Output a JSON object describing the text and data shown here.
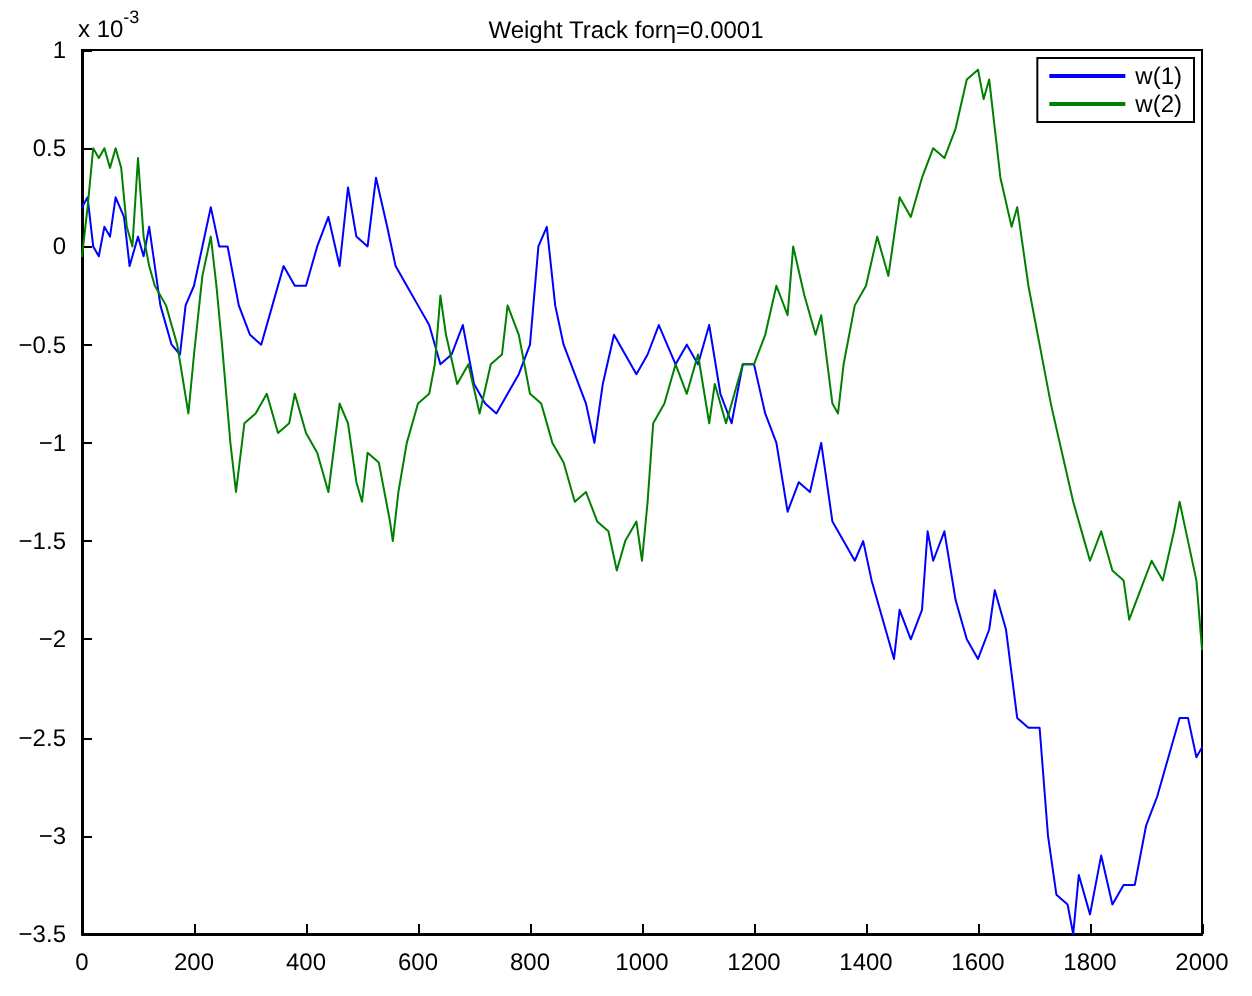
{
  "chart_data": {
    "type": "line",
    "title": "Weight Track forη=0.0001",
    "annotations": [
      "x 10$^{-3}$"
    ],
    "xlim": [
      0,
      2000
    ],
    "xticks": [
      0,
      200,
      400,
      600,
      800,
      1000,
      1200,
      1400,
      1600,
      1800,
      2000
    ],
    "ylim": [
      -3.5,
      1
    ],
    "yticks": [
      -3.5,
      -3,
      -2.5,
      -2,
      -1.5,
      -1,
      -0.5,
      0,
      0.5,
      1
    ],
    "grid": false,
    "legend": "top right",
    "marker": "none",
    "line_style": "solid",
    "series": [
      {
        "name": "w(1)",
        "color": "#0000ff",
        "x": [
          0,
          10,
          20,
          30,
          40,
          50,
          60,
          75,
          85,
          100,
          110,
          120,
          130,
          140,
          160,
          175,
          185,
          200,
          215,
          230,
          245,
          260,
          280,
          300,
          320,
          340,
          360,
          380,
          400,
          420,
          440,
          460,
          475,
          490,
          510,
          525,
          545,
          560,
          580,
          600,
          620,
          640,
          660,
          680,
          700,
          720,
          740,
          760,
          780,
          800,
          815,
          830,
          845,
          860,
          880,
          900,
          915,
          930,
          950,
          970,
          990,
          1010,
          1030,
          1060,
          1080,
          1100,
          1120,
          1140,
          1160,
          1180,
          1200,
          1220,
          1240,
          1260,
          1280,
          1300,
          1320,
          1340,
          1360,
          1380,
          1395,
          1410,
          1430,
          1450,
          1460,
          1480,
          1500,
          1510,
          1520,
          1540,
          1560,
          1580,
          1600,
          1620,
          1630,
          1650,
          1670,
          1690,
          1710,
          1725,
          1740,
          1760,
          1770,
          1780,
          1800,
          1820,
          1840,
          1860,
          1880,
          1900,
          1920,
          1940,
          1960,
          1975,
          1990,
          2000
        ],
        "values": [
          0.2,
          0.25,
          0.0,
          -0.05,
          0.1,
          0.05,
          0.25,
          0.15,
          -0.1,
          0.05,
          -0.05,
          0.1,
          -0.1,
          -0.3,
          -0.5,
          -0.55,
          -0.3,
          -0.2,
          0.0,
          0.2,
          0.0,
          0.0,
          -0.3,
          -0.45,
          -0.5,
          -0.3,
          -0.1,
          -0.2,
          -0.2,
          0.0,
          0.15,
          -0.1,
          0.3,
          0.05,
          0.0,
          0.35,
          0.1,
          -0.1,
          -0.2,
          -0.3,
          -0.4,
          -0.6,
          -0.55,
          -0.4,
          -0.7,
          -0.8,
          -0.85,
          -0.75,
          -0.65,
          -0.5,
          0.0,
          0.1,
          -0.3,
          -0.5,
          -0.65,
          -0.8,
          -1.0,
          -0.7,
          -0.45,
          -0.55,
          -0.65,
          -0.55,
          -0.4,
          -0.6,
          -0.5,
          -0.6,
          -0.4,
          -0.75,
          -0.9,
          -0.6,
          -0.6,
          -0.85,
          -1.0,
          -1.35,
          -1.2,
          -1.25,
          -1.0,
          -1.4,
          -1.5,
          -1.6,
          -1.5,
          -1.7,
          -1.9,
          -2.1,
          -1.85,
          -2.0,
          -1.85,
          -1.45,
          -1.6,
          -1.45,
          -1.8,
          -2.0,
          -2.1,
          -1.95,
          -1.75,
          -1.95,
          -2.4,
          -2.45,
          -2.45,
          -3.0,
          -3.3,
          -3.35,
          -3.5,
          -3.2,
          -3.4,
          -3.1,
          -3.35,
          -3.25,
          -3.25,
          -2.95,
          -2.8,
          -2.6,
          -2.4,
          -2.4,
          -2.6,
          -2.55
        ]
      },
      {
        "name": "w(2)",
        "color": "#008000",
        "x": [
          0,
          10,
          20,
          30,
          40,
          50,
          60,
          70,
          80,
          90,
          100,
          110,
          120,
          130,
          150,
          170,
          190,
          200,
          215,
          230,
          240,
          250,
          265,
          275,
          290,
          310,
          330,
          350,
          370,
          380,
          400,
          420,
          440,
          460,
          475,
          490,
          500,
          510,
          530,
          550,
          555,
          565,
          580,
          600,
          620,
          630,
          640,
          650,
          670,
          690,
          710,
          730,
          750,
          760,
          780,
          800,
          820,
          840,
          860,
          880,
          900,
          920,
          940,
          955,
          970,
          990,
          1000,
          1010,
          1020,
          1040,
          1060,
          1080,
          1100,
          1120,
          1130,
          1150,
          1180,
          1200,
          1220,
          1240,
          1260,
          1270,
          1290,
          1310,
          1320,
          1340,
          1350,
          1360,
          1380,
          1400,
          1420,
          1440,
          1460,
          1480,
          1500,
          1520,
          1540,
          1560,
          1580,
          1600,
          1610,
          1620,
          1630,
          1640,
          1660,
          1670,
          1690,
          1710,
          1730,
          1750,
          1770,
          1790,
          1800,
          1820,
          1840,
          1860,
          1870,
          1890,
          1910,
          1930,
          1950,
          1960,
          1975,
          1990,
          2000
        ],
        "values": [
          -0.05,
          0.2,
          0.5,
          0.45,
          0.5,
          0.4,
          0.5,
          0.4,
          0.1,
          0.0,
          0.45,
          0.05,
          -0.1,
          -0.2,
          -0.3,
          -0.5,
          -0.85,
          -0.55,
          -0.15,
          0.05,
          -0.2,
          -0.5,
          -1.0,
          -1.25,
          -0.9,
          -0.85,
          -0.75,
          -0.95,
          -0.9,
          -0.75,
          -0.95,
          -1.05,
          -1.25,
          -0.8,
          -0.9,
          -1.2,
          -1.3,
          -1.05,
          -1.1,
          -1.4,
          -1.5,
          -1.25,
          -1.0,
          -0.8,
          -0.75,
          -0.6,
          -0.25,
          -0.45,
          -0.7,
          -0.6,
          -0.85,
          -0.6,
          -0.55,
          -0.3,
          -0.45,
          -0.75,
          -0.8,
          -1.0,
          -1.1,
          -1.3,
          -1.25,
          -1.4,
          -1.45,
          -1.65,
          -1.5,
          -1.4,
          -1.6,
          -1.3,
          -0.9,
          -0.8,
          -0.6,
          -0.75,
          -0.55,
          -0.9,
          -0.7,
          -0.9,
          -0.6,
          -0.6,
          -0.45,
          -0.2,
          -0.35,
          0.0,
          -0.25,
          -0.45,
          -0.35,
          -0.8,
          -0.85,
          -0.6,
          -0.3,
          -0.2,
          0.05,
          -0.15,
          0.25,
          0.15,
          0.35,
          0.5,
          0.45,
          0.6,
          0.85,
          0.9,
          0.75,
          0.85,
          0.6,
          0.35,
          0.1,
          0.2,
          -0.2,
          -0.5,
          -0.8,
          -1.05,
          -1.3,
          -1.5,
          -1.6,
          -1.45,
          -1.65,
          -1.7,
          -1.9,
          -1.75,
          -1.6,
          -1.7,
          -1.45,
          -1.3,
          -1.5,
          -1.7,
          -2.05
        ]
      }
    ]
  }
}
